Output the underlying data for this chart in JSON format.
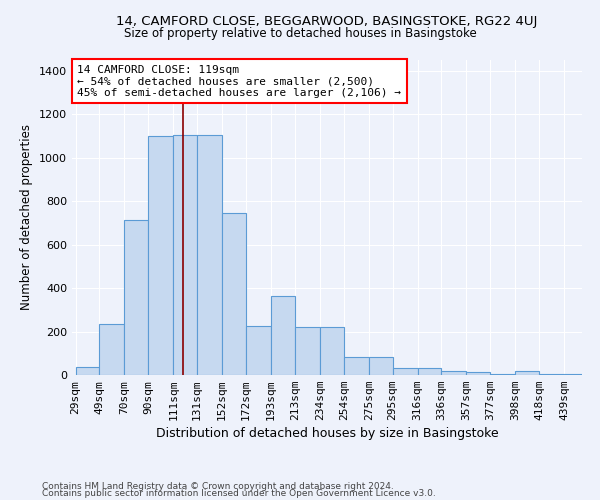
{
  "title": "14, CAMFORD CLOSE, BEGGARWOOD, BASINGSTOKE, RG22 4UJ",
  "subtitle": "Size of property relative to detached houses in Basingstoke",
  "xlabel": "Distribution of detached houses by size in Basingstoke",
  "ylabel": "Number of detached properties",
  "bar_edges": [
    29,
    49,
    70,
    90,
    111,
    131,
    152,
    172,
    193,
    213,
    234,
    254,
    275,
    295,
    316,
    336,
    357,
    377,
    398,
    418,
    439
  ],
  "bar_heights": [
    35,
    235,
    715,
    1100,
    1105,
    1105,
    745,
    225,
    365,
    220,
    220,
    85,
    85,
    30,
    30,
    20,
    15,
    5,
    20,
    5,
    5
  ],
  "bar_color": "#c6d9f0",
  "bar_edge_color": "#5b9bd5",
  "bar_linewidth": 0.8,
  "vline_x": 119,
  "vline_color": "#8b0000",
  "vline_linewidth": 1.2,
  "annotation_text": "14 CAMFORD CLOSE: 119sqm\n← 54% of detached houses are smaller (2,500)\n45% of semi-detached houses are larger (2,106) →",
  "ylim": [
    0,
    1450
  ],
  "yticks": [
    0,
    200,
    400,
    600,
    800,
    1000,
    1200,
    1400
  ],
  "background_color": "#eef2fb",
  "grid_color": "#ffffff",
  "footer_line1": "Contains HM Land Registry data © Crown copyright and database right 2024.",
  "footer_line2": "Contains public sector information licensed under the Open Government Licence v3.0."
}
